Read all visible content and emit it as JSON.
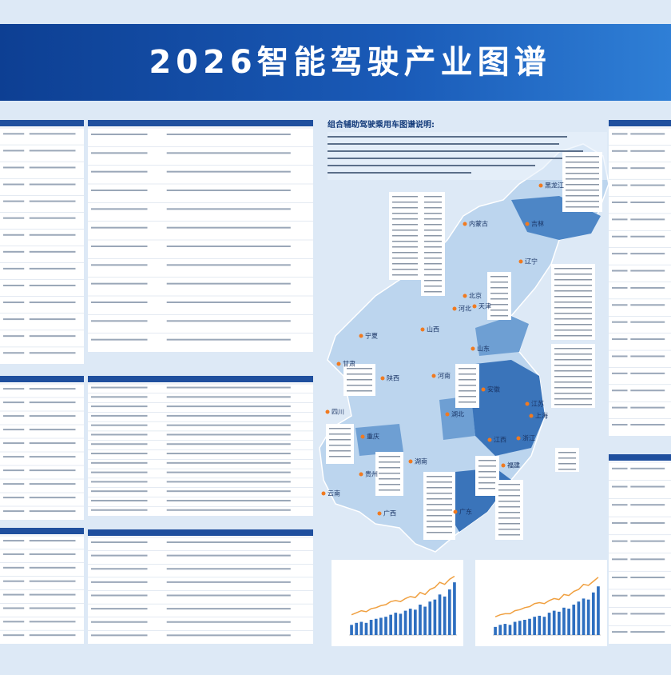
{
  "header": {
    "title": "2026智能驾驶产业图谱"
  },
  "map": {
    "legend_title": "组合辅助驾驶乘用车图谱说明:",
    "provinces": [
      "黑龙江",
      "吉林",
      "辽宁",
      "内蒙古",
      "北京",
      "天津",
      "河北",
      "山西",
      "山东",
      "宁夏",
      "甘肃",
      "陕西",
      "河南",
      "江苏",
      "安徽",
      "上海",
      "湖北",
      "浙江",
      "四川",
      "重庆",
      "湖南",
      "江西",
      "贵州",
      "福建",
      "云南",
      "广西",
      "广东"
    ]
  },
  "chart_data": [
    {
      "type": "bar",
      "series": [
        {
          "name": "bars",
          "color": "#2e6fc0",
          "values": [
            10,
            12,
            13,
            12,
            15,
            16,
            17,
            18,
            20,
            22,
            21,
            24,
            26,
            25,
            30,
            28,
            33,
            35,
            40,
            38,
            45,
            52
          ]
        },
        {
          "name": "line",
          "color": "#f0a040",
          "values": [
            20,
            22,
            24,
            23,
            26,
            27,
            29,
            30,
            33,
            34,
            33,
            36,
            38,
            37,
            42,
            40,
            45,
            47,
            52,
            50,
            55,
            58
          ]
        }
      ],
      "ylim": [
        0,
        60
      ]
    },
    {
      "type": "bar",
      "series": [
        {
          "name": "bars",
          "color": "#2e6fc0",
          "values": [
            8,
            10,
            11,
            10,
            13,
            14,
            15,
            16,
            18,
            19,
            18,
            22,
            24,
            23,
            27,
            26,
            30,
            33,
            36,
            35,
            42,
            48
          ]
        },
        {
          "name": "line",
          "color": "#f0a040",
          "values": [
            18,
            20,
            21,
            21,
            24,
            25,
            27,
            28,
            31,
            32,
            31,
            34,
            36,
            35,
            40,
            39,
            43,
            45,
            50,
            49,
            53,
            57
          ]
        }
      ],
      "ylim": [
        0,
        60
      ]
    }
  ]
}
